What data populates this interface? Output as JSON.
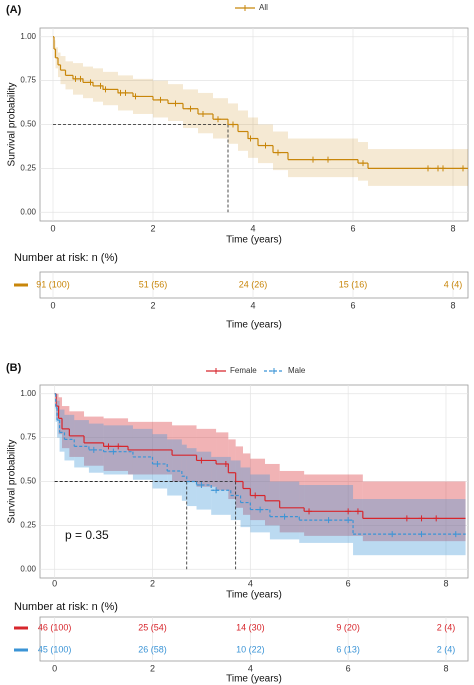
{
  "chart_data": [
    {
      "type": "km",
      "panel_label": "(A)",
      "xlabel": "Time (years)",
      "ylabel": "Survival probability",
      "xlim": [
        -0.26,
        8.3
      ],
      "ylim": [
        -0.05,
        1.05
      ],
      "xticks": [
        0,
        2,
        4,
        6,
        8
      ],
      "yticks": [
        {
          "value": 0,
          "label": "0.00"
        },
        0.25,
        {
          "value": 0.5,
          "label": "0.50"
        },
        0.75,
        {
          "value": 1,
          "label": "1.00"
        }
      ],
      "grid": true,
      "legend": "top",
      "median_level": 0.5,
      "series": [
        {
          "name": "All",
          "color": "#c8860a",
          "linestyle": "solid",
          "median": 3.5,
          "x": [
            0,
            0.02,
            0.05,
            0.1,
            0.15,
            0.25,
            0.4,
            0.6,
            0.8,
            1.0,
            1.3,
            1.6,
            2.0,
            2.3,
            2.6,
            2.9,
            3.2,
            3.5,
            3.7,
            3.9,
            4.1,
            4.4,
            4.7,
            6.1,
            6.3,
            8.3
          ],
          "values": [
            1,
            0.93,
            0.88,
            0.84,
            0.81,
            0.78,
            0.76,
            0.74,
            0.72,
            0.7,
            0.68,
            0.66,
            0.64,
            0.62,
            0.59,
            0.56,
            0.53,
            0.5,
            0.46,
            0.42,
            0.38,
            0.34,
            0.3,
            0.28,
            0.25,
            0.25
          ],
          "lower": [
            1,
            0.88,
            0.82,
            0.77,
            0.73,
            0.7,
            0.67,
            0.65,
            0.63,
            0.61,
            0.58,
            0.56,
            0.54,
            0.52,
            0.48,
            0.45,
            0.42,
            0.39,
            0.35,
            0.31,
            0.28,
            0.24,
            0.2,
            0.18,
            0.15,
            0.15
          ],
          "upper": [
            1,
            0.98,
            0.94,
            0.91,
            0.89,
            0.86,
            0.85,
            0.83,
            0.82,
            0.8,
            0.78,
            0.76,
            0.75,
            0.73,
            0.7,
            0.68,
            0.65,
            0.62,
            0.58,
            0.54,
            0.5,
            0.46,
            0.42,
            0.4,
            0.36,
            0.36
          ],
          "censored": {
            "x": [
              0.45,
              0.55,
              0.75,
              0.95,
              1.05,
              1.35,
              1.45,
              1.65,
              2.15,
              2.45,
              2.75,
              3.0,
              3.3,
              3.6,
              3.95,
              4.25,
              4.5,
              5.2,
              5.5,
              6.2,
              7.5,
              7.7,
              7.8,
              8.2
            ],
            "values": [
              0.76,
              0.76,
              0.74,
              0.72,
              0.7,
              0.68,
              0.68,
              0.66,
              0.64,
              0.62,
              0.59,
              0.56,
              0.53,
              0.5,
              0.42,
              0.38,
              0.34,
              0.3,
              0.3,
              0.28,
              0.25,
              0.25,
              0.25,
              0.25
            ]
          }
        }
      ]
    },
    {
      "type": "risk-table",
      "title": "Number at risk: n (%)",
      "xlabel": "Time (years)",
      "xlim": [
        -0.26,
        8.3
      ],
      "xticks": [
        0,
        2,
        4,
        6,
        8
      ],
      "grid": true,
      "series": [
        {
          "color": "#c8860a",
          "x": [
            0,
            2,
            4,
            6,
            8
          ],
          "values": [
            91,
            51,
            24,
            15,
            4
          ],
          "value_labels": [
            "91 (100)",
            "51 (56)",
            "24 (26)",
            "15 (16)",
            "4 (4)"
          ]
        }
      ]
    },
    {
      "type": "km",
      "panel_label": "(B)",
      "xlabel": "Time (years)",
      "ylabel": "Survival probability",
      "xlim": [
        -0.3,
        8.45
      ],
      "ylim": [
        -0.05,
        1.05
      ],
      "xticks": [
        0,
        2,
        4,
        6,
        8
      ],
      "yticks": [
        {
          "value": 0,
          "label": "0.00"
        },
        0.25,
        {
          "value": 0.5,
          "label": "0.50"
        },
        0.75,
        {
          "value": 1,
          "label": "1.00"
        }
      ],
      "grid": true,
      "legend": "top",
      "median_level": 0.5,
      "annotation": "p = 0.35",
      "series": [
        {
          "name": "Female",
          "color": "#d7262c",
          "linestyle": "solid",
          "median": 3.7,
          "x": [
            0,
            0.03,
            0.08,
            0.15,
            0.3,
            0.6,
            1.0,
            1.5,
            2.4,
            2.9,
            3.3,
            3.55,
            3.7,
            3.85,
            4.0,
            4.3,
            4.6,
            5.1,
            6.3,
            8.4
          ],
          "values": [
            1,
            0.93,
            0.86,
            0.8,
            0.76,
            0.72,
            0.7,
            0.68,
            0.65,
            0.62,
            0.6,
            0.55,
            0.5,
            0.46,
            0.42,
            0.39,
            0.35,
            0.33,
            0.29,
            0.29
          ],
          "lower": [
            1,
            0.86,
            0.77,
            0.69,
            0.64,
            0.59,
            0.56,
            0.54,
            0.5,
            0.47,
            0.45,
            0.4,
            0.35,
            0.31,
            0.28,
            0.25,
            0.21,
            0.19,
            0.16,
            0.16
          ],
          "upper": [
            1,
            1,
            0.98,
            0.93,
            0.9,
            0.87,
            0.86,
            0.84,
            0.82,
            0.8,
            0.78,
            0.74,
            0.7,
            0.66,
            0.63,
            0.6,
            0.56,
            0.54,
            0.5,
            0.5
          ],
          "censored": {
            "x": [
              1.1,
              1.3,
              3.0,
              3.5,
              4.1,
              5.2,
              6.0,
              6.2,
              7.2,
              7.5,
              7.8
            ],
            "values": [
              0.7,
              0.7,
              0.62,
              0.6,
              0.42,
              0.33,
              0.33,
              0.33,
              0.29,
              0.29,
              0.29
            ]
          }
        },
        {
          "name": "Male",
          "color": "#3b94d6",
          "linestyle": "dashed",
          "median": 2.7,
          "x": [
            0,
            0.02,
            0.05,
            0.1,
            0.2,
            0.4,
            0.7,
            1.0,
            1.6,
            2.0,
            2.3,
            2.6,
            2.7,
            2.9,
            3.2,
            3.6,
            3.8,
            4.0,
            4.4,
            5.0,
            6.1,
            8.4
          ],
          "values": [
            1,
            0.92,
            0.85,
            0.78,
            0.74,
            0.7,
            0.68,
            0.67,
            0.64,
            0.6,
            0.56,
            0.53,
            0.5,
            0.48,
            0.45,
            0.42,
            0.38,
            0.34,
            0.3,
            0.28,
            0.2,
            0.2
          ],
          "lower": [
            1,
            0.84,
            0.75,
            0.67,
            0.62,
            0.58,
            0.55,
            0.54,
            0.51,
            0.46,
            0.42,
            0.39,
            0.36,
            0.34,
            0.31,
            0.28,
            0.24,
            0.21,
            0.17,
            0.15,
            0.08,
            0.08
          ],
          "upper": [
            1,
            1,
            0.96,
            0.91,
            0.88,
            0.85,
            0.83,
            0.82,
            0.8,
            0.77,
            0.74,
            0.71,
            0.69,
            0.67,
            0.64,
            0.62,
            0.58,
            0.54,
            0.5,
            0.48,
            0.4,
            0.4
          ],
          "censored": {
            "x": [
              0.8,
              1.2,
              2.1,
              3.0,
              3.3,
              4.2,
              4.7,
              5.6,
              6.0,
              6.9,
              7.5,
              8.2
            ],
            "values": [
              0.68,
              0.67,
              0.6,
              0.48,
              0.45,
              0.34,
              0.3,
              0.28,
              0.28,
              0.2,
              0.2,
              0.2
            ]
          }
        }
      ]
    },
    {
      "type": "risk-table",
      "title": "Number at risk: n (%)",
      "xlabel": "Time (years)",
      "xlim": [
        -0.3,
        8.45
      ],
      "xticks": [
        0,
        2,
        4,
        6,
        8
      ],
      "grid": true,
      "series": [
        {
          "color": "#d7262c",
          "x": [
            0,
            2,
            4,
            6,
            8
          ],
          "values": [
            46,
            25,
            14,
            9,
            2
          ],
          "value_labels": [
            "46 (100)",
            "25 (54)",
            "14 (30)",
            "9 (20)",
            "2 (4)"
          ]
        },
        {
          "color": "#3b94d6",
          "x": [
            0,
            2,
            4,
            6,
            8
          ],
          "values": [
            45,
            26,
            10,
            6,
            2
          ],
          "value_labels": [
            "45 (100)",
            "26 (58)",
            "10 (22)",
            "6 (13)",
            "2 (4)"
          ]
        }
      ]
    }
  ]
}
